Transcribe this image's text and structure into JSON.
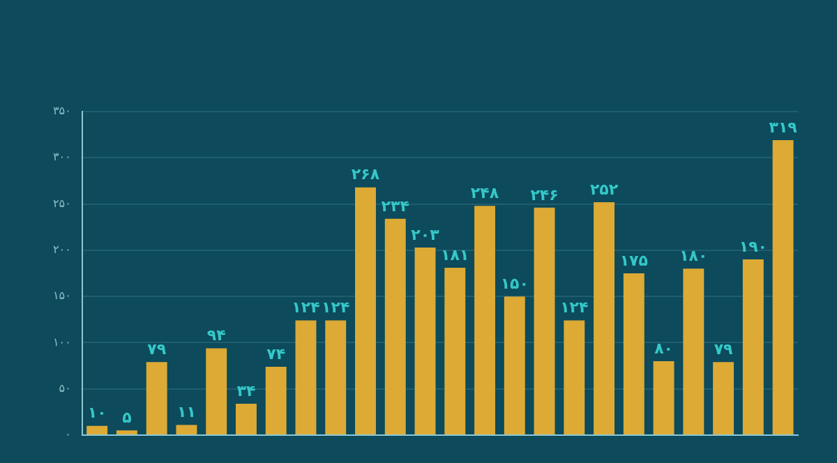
{
  "chart_data": {
    "type": "bar",
    "categories": [
      null,
      null,
      null,
      null,
      null,
      null,
      null,
      null,
      null,
      null,
      null,
      null,
      null,
      null,
      null,
      null,
      null,
      null,
      null,
      null,
      null,
      null,
      null,
      null
    ],
    "values": [
      10,
      5,
      79,
      11,
      94,
      34,
      74,
      124,
      124,
      268,
      234,
      203,
      181,
      248,
      150,
      246,
      124,
      252,
      175,
      80,
      180,
      79,
      190,
      319
    ],
    "value_labels": [
      "۱۰",
      "۵",
      "۷۹",
      "۱۱",
      "۹۴",
      "۳۴",
      "۷۴",
      "۱۲۴",
      "۱۲۴",
      "۲۶۸",
      "۲۳۴",
      "۲۰۳",
      "۱۸۱",
      "۲۴۸",
      "۱۵۰",
      "۲۴۶",
      "۱۲۴",
      "۲۵۲",
      "۱۷۵",
      "۸۰",
      "۱۸۰",
      "۷۹",
      "۱۹۰",
      "۳۱۹"
    ],
    "color": "#dcaa35",
    "ylim": [
      0,
      350
    ],
    "yticks": [
      {
        "value": 0,
        "label": "۰"
      },
      {
        "value": 50,
        "label": "۵۰"
      },
      {
        "value": 100,
        "label": "۱۰۰"
      },
      {
        "value": 150,
        "label": "۱۵۰"
      },
      {
        "value": 200,
        "label": "۲۰۰"
      },
      {
        "value": 250,
        "label": "۲۵۰"
      },
      {
        "value": 300,
        "label": "۳۰۰"
      },
      {
        "value": 350,
        "label": "۳۵۰"
      }
    ],
    "grid": "y",
    "tick_labels": "y",
    "legend": false
  }
}
